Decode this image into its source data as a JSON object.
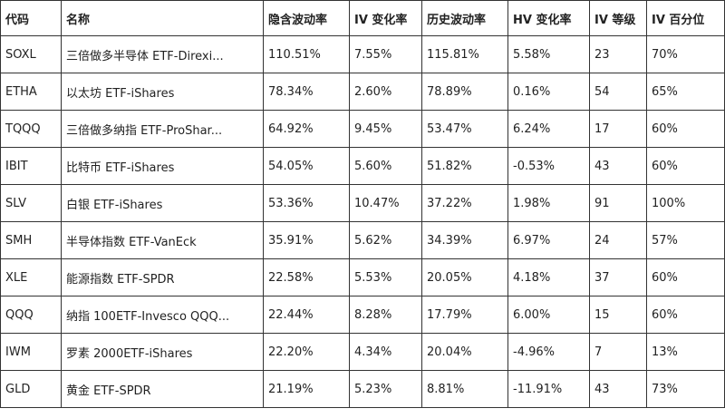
{
  "table": {
    "header": [
      "代码",
      "名称",
      "隐含波动率",
      "IV 变化率",
      "历史波动率",
      "HV 变化率",
      "IV 等级",
      "IV 百分位"
    ],
    "rows": [
      [
        "SOXL",
        "三倍做多半导体 ETF-Direxi...",
        "110.51%",
        "7.55%",
        "115.81%",
        "5.58%",
        "23",
        "70%"
      ],
      [
        "ETHA",
        "以太坊 ETF-iShares",
        "78.34%",
        "2.60%",
        "78.89%",
        "0.16%",
        "54",
        "65%"
      ],
      [
        "TQQQ",
        "三倍做多纳指 ETF-ProShar...",
        "64.92%",
        "9.45%",
        "53.47%",
        "6.24%",
        "17",
        "60%"
      ],
      [
        "IBIT",
        "比特币 ETF-iShares",
        "54.05%",
        "5.60%",
        "51.82%",
        "-0.53%",
        "43",
        "60%"
      ],
      [
        "SLV",
        "白银 ETF-iShares",
        "53.36%",
        "10.47%",
        "37.22%",
        "1.98%",
        "91",
        "100%"
      ],
      [
        "SMH",
        "半导体指数 ETF-VanEck",
        "35.91%",
        "5.62%",
        "34.39%",
        "6.97%",
        "24",
        "57%"
      ],
      [
        "XLE",
        "能源指数 ETF-SPDR",
        "22.58%",
        "5.53%",
        "20.05%",
        "4.18%",
        "37",
        "60%"
      ],
      [
        "QQQ",
        "纳指 100ETF-Invesco QQQ...",
        "22.44%",
        "8.28%",
        "17.79%",
        "6.00%",
        "15",
        "60%"
      ],
      [
        "IWM",
        "罗素 2000ETF-iShares",
        "22.20%",
        "4.34%",
        "20.04%",
        "-4.96%",
        "7",
        "13%"
      ],
      [
        "GLD",
        "黄金 ETF-SPDR",
        "21.19%",
        "5.23%",
        "8.81%",
        "-11.91%",
        "43",
        "73%"
      ]
    ]
  }
}
